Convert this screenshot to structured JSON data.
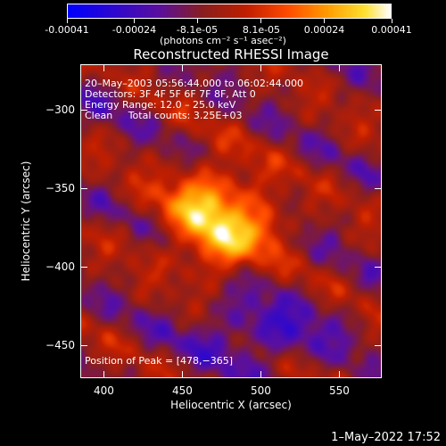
{
  "colorbar": {
    "ticks": [
      "-0.00041",
      "-0.00024",
      "-8.1e-05",
      "8.1e-05",
      "0.00024",
      "0.00041"
    ],
    "tick_values": [
      -0.00041,
      -0.00024,
      -8.1e-05,
      8.1e-05,
      0.00024,
      0.00041
    ],
    "range": [
      -0.00041,
      0.00041
    ],
    "units_label": "(photons cm⁻² s⁻¹ asec⁻²)",
    "colors": [
      "#0000ff",
      "#5a0fa0",
      "#8a1e1e",
      "#c01e00",
      "#ff4a00",
      "#ff9a00",
      "#ffe030",
      "#ffffff"
    ]
  },
  "chart_data": {
    "type": "heatmap",
    "title": "Reconstructed RHESSI Image",
    "xlabel": "Heliocentric X (arcsec)",
    "ylabel": "Heliocentric Y (arcsec)",
    "xlim": [
      385,
      577
    ],
    "ylim": [
      -471,
      -271
    ],
    "xticks": [
      400,
      450,
      500,
      550
    ],
    "yticks": [
      -300,
      -350,
      -400,
      -450
    ],
    "xtick_labels": [
      "400",
      "450",
      "500",
      "550"
    ],
    "ytick_labels": [
      "−300",
      "−350",
      "−400",
      "−450"
    ],
    "peak": [
      478,
      -365
    ],
    "annotations": [
      "20–May–2003 05:56:44.000 to 06:02:44.000",
      "Detectors: 3F 4F 5F 6F 7F 8F, Att 0",
      "Energy Range: 12.0 – 25.0 keV",
      "Clean     Total counts: 3.25E+03"
    ],
    "peak_label": "Position of Peak = [478,−365]"
  },
  "timestamp": "1–May–2022 17:52"
}
